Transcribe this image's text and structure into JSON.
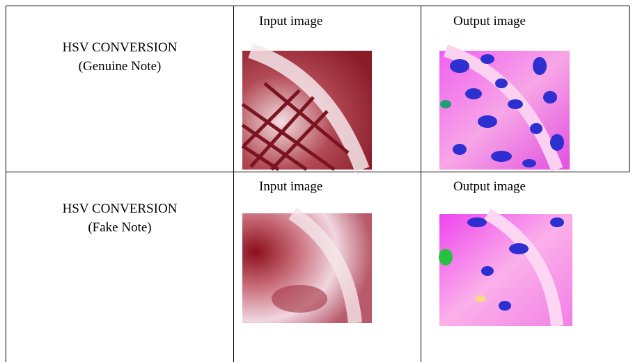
{
  "table": {
    "rows": [
      {
        "title": "HSV CONVERSION",
        "subtitle": "(Genuine Note)",
        "input_caption": "Input image",
        "output_caption": "Output image"
      },
      {
        "title": "HSV CONVERSION",
        "subtitle": "(Fake Note)",
        "input_caption": "Input image",
        "output_caption": "Output image"
      }
    ]
  }
}
